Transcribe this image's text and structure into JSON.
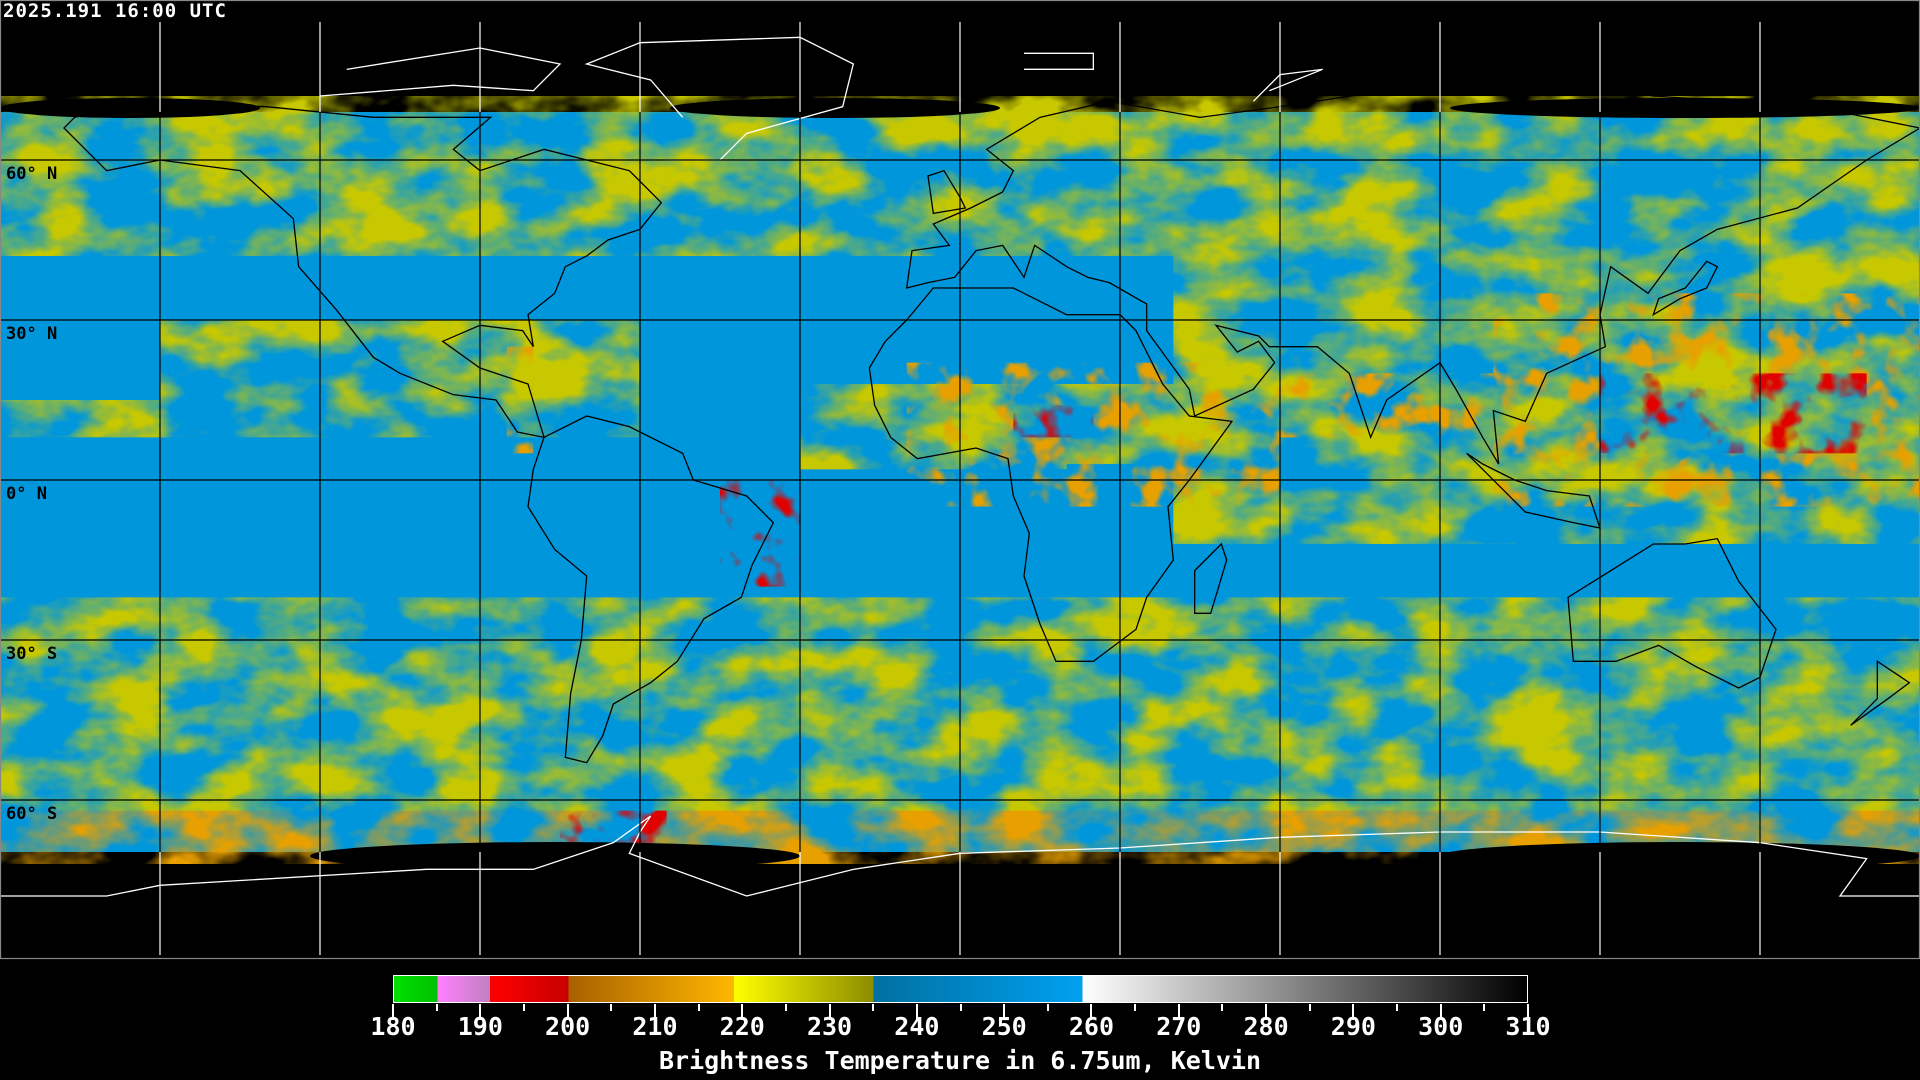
{
  "header": {
    "timestamp": "2025.191 16:00 UTC"
  },
  "map": {
    "projection": "equirectangular",
    "center_longitude": 0,
    "grid_interval_degrees": 30,
    "latitude_labels": [
      "60° N",
      "30° N",
      "0° N",
      "30° S",
      "60° S"
    ],
    "colors": {
      "background": "#000000",
      "dry": "#0096dc",
      "moist": "#c8c800",
      "cold": "#e8a000",
      "very_cold": "#e00000",
      "coastline_land": "#000000",
      "coastline_polar": "#ffffff",
      "grid": "#000000"
    }
  },
  "colorbar": {
    "min": 180,
    "max": 310,
    "tick_labels": [
      "180",
      "190",
      "200",
      "210",
      "220",
      "230",
      "240",
      "250",
      "260",
      "270",
      "280",
      "290",
      "300",
      "310"
    ],
    "segments": [
      {
        "from": 180,
        "to": 185,
        "start": "#00e000",
        "end": "#00c000"
      },
      {
        "from": 185,
        "to": 191,
        "start": "#ff80ff",
        "end": "#c080c0"
      },
      {
        "from": 191,
        "to": 200,
        "start": "#ff0000",
        "end": "#c80000"
      },
      {
        "from": 200,
        "to": 219,
        "start": "#a86000",
        "end": "#ffb800"
      },
      {
        "from": 219,
        "to": 235,
        "start": "#ffff00",
        "end": "#8c8c00"
      },
      {
        "from": 235,
        "to": 259,
        "start": "#0070a0",
        "end": "#00a0f0"
      },
      {
        "from": 259,
        "to": 310,
        "start": "#ffffff",
        "end": "#000000"
      }
    ],
    "caption": "Brightness Temperature in 6.75um, Kelvin"
  }
}
